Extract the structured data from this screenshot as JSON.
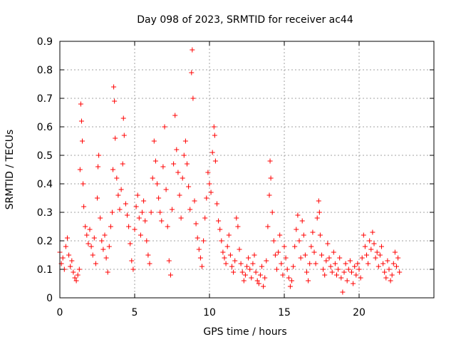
{
  "chart_data": {
    "type": "scatter",
    "title": "Day 098 of 2023, SRMTID for receiver ac44",
    "xlabel": "GPS time / hours",
    "ylabel": "SRMTID / TECUs",
    "xlim": [
      0,
      25
    ],
    "ylim": [
      0,
      0.9
    ],
    "xticks": [
      0,
      5,
      10,
      15,
      20
    ],
    "xtick_labels": [
      "0",
      "5",
      "10",
      "15",
      "20"
    ],
    "yticks": [
      0,
      0.1,
      0.2,
      0.3,
      0.4,
      0.5,
      0.6,
      0.7,
      0.8,
      0.9
    ],
    "ytick_labels": [
      "0",
      "0.1",
      "0.2",
      "0.3",
      "0.4",
      "0.5",
      "0.6",
      "0.7",
      "0.8",
      "0.9"
    ],
    "grid": true,
    "marker": "+",
    "color": "#ff0000",
    "series": [
      {
        "name": "SRMTID",
        "points": [
          [
            0.0,
            0.16
          ],
          [
            0.1,
            0.12
          ],
          [
            0.2,
            0.14
          ],
          [
            0.3,
            0.1
          ],
          [
            0.4,
            0.18
          ],
          [
            0.5,
            0.21
          ],
          [
            0.6,
            0.15
          ],
          [
            0.7,
            0.11
          ],
          [
            0.8,
            0.13
          ],
          [
            0.9,
            0.09
          ],
          [
            1.0,
            0.07
          ],
          [
            1.1,
            0.06
          ],
          [
            1.2,
            0.08
          ],
          [
            1.3,
            0.1
          ],
          [
            1.35,
            0.45
          ],
          [
            1.4,
            0.68
          ],
          [
            1.45,
            0.62
          ],
          [
            1.5,
            0.55
          ],
          [
            1.55,
            0.4
          ],
          [
            1.6,
            0.32
          ],
          [
            1.7,
            0.25
          ],
          [
            1.8,
            0.22
          ],
          [
            1.9,
            0.19
          ],
          [
            2.0,
            0.24
          ],
          [
            2.1,
            0.18
          ],
          [
            2.2,
            0.15
          ],
          [
            2.3,
            0.21
          ],
          [
            2.4,
            0.12
          ],
          [
            2.5,
            0.35
          ],
          [
            2.55,
            0.46
          ],
          [
            2.6,
            0.5
          ],
          [
            2.7,
            0.28
          ],
          [
            2.8,
            0.2
          ],
          [
            2.9,
            0.17
          ],
          [
            3.0,
            0.22
          ],
          [
            3.1,
            0.14
          ],
          [
            3.2,
            0.09
          ],
          [
            3.3,
            0.18
          ],
          [
            3.4,
            0.25
          ],
          [
            3.5,
            0.3
          ],
          [
            3.55,
            0.45
          ],
          [
            3.6,
            0.74
          ],
          [
            3.65,
            0.69
          ],
          [
            3.7,
            0.56
          ],
          [
            3.8,
            0.42
          ],
          [
            3.9,
            0.36
          ],
          [
            4.0,
            0.31
          ],
          [
            4.1,
            0.38
          ],
          [
            4.2,
            0.47
          ],
          [
            4.25,
            0.63
          ],
          [
            4.3,
            0.57
          ],
          [
            4.4,
            0.33
          ],
          [
            4.5,
            0.29
          ],
          [
            4.6,
            0.25
          ],
          [
            4.7,
            0.19
          ],
          [
            4.8,
            0.13
          ],
          [
            4.9,
            0.1
          ],
          [
            5.0,
            0.24
          ],
          [
            5.1,
            0.32
          ],
          [
            5.2,
            0.36
          ],
          [
            5.3,
            0.28
          ],
          [
            5.4,
            0.22
          ],
          [
            5.5,
            0.3
          ],
          [
            5.6,
            0.34
          ],
          [
            5.7,
            0.27
          ],
          [
            5.8,
            0.2
          ],
          [
            5.9,
            0.15
          ],
          [
            6.0,
            0.12
          ],
          [
            6.1,
            0.3
          ],
          [
            6.2,
            0.42
          ],
          [
            6.3,
            0.55
          ],
          [
            6.4,
            0.48
          ],
          [
            6.5,
            0.4
          ],
          [
            6.6,
            0.35
          ],
          [
            6.7,
            0.3
          ],
          [
            6.8,
            0.27
          ],
          [
            6.9,
            0.46
          ],
          [
            7.0,
            0.6
          ],
          [
            7.1,
            0.38
          ],
          [
            7.2,
            0.25
          ],
          [
            7.3,
            0.13
          ],
          [
            7.4,
            0.08
          ],
          [
            7.5,
            0.31
          ],
          [
            7.6,
            0.47
          ],
          [
            7.7,
            0.64
          ],
          [
            7.8,
            0.52
          ],
          [
            7.9,
            0.44
          ],
          [
            8.0,
            0.36
          ],
          [
            8.1,
            0.28
          ],
          [
            8.2,
            0.42
          ],
          [
            8.3,
            0.5
          ],
          [
            8.4,
            0.55
          ],
          [
            8.5,
            0.47
          ],
          [
            8.6,
            0.39
          ],
          [
            8.7,
            0.31
          ],
          [
            8.8,
            0.79
          ],
          [
            8.85,
            0.87
          ],
          [
            8.9,
            0.7
          ],
          [
            9.0,
            0.34
          ],
          [
            9.1,
            0.26
          ],
          [
            9.2,
            0.21
          ],
          [
            9.3,
            0.17
          ],
          [
            9.4,
            0.14
          ],
          [
            9.5,
            0.11
          ],
          [
            9.6,
            0.2
          ],
          [
            9.7,
            0.28
          ],
          [
            9.8,
            0.35
          ],
          [
            9.9,
            0.44
          ],
          [
            10.0,
            0.4
          ],
          [
            10.1,
            0.37
          ],
          [
            10.2,
            0.51
          ],
          [
            10.3,
            0.6
          ],
          [
            10.35,
            0.57
          ],
          [
            10.4,
            0.48
          ],
          [
            10.5,
            0.33
          ],
          [
            10.6,
            0.27
          ],
          [
            10.7,
            0.24
          ],
          [
            10.8,
            0.2
          ],
          [
            10.9,
            0.16
          ],
          [
            11.0,
            0.14
          ],
          [
            11.1,
            0.12
          ],
          [
            11.2,
            0.18
          ],
          [
            11.3,
            0.22
          ],
          [
            11.4,
            0.15
          ],
          [
            11.5,
            0.11
          ],
          [
            11.6,
            0.09
          ],
          [
            11.7,
            0.13
          ],
          [
            11.8,
            0.28
          ],
          [
            11.9,
            0.25
          ],
          [
            12.0,
            0.17
          ],
          [
            12.1,
            0.12
          ],
          [
            12.2,
            0.09
          ],
          [
            12.3,
            0.06
          ],
          [
            12.4,
            0.08
          ],
          [
            12.5,
            0.11
          ],
          [
            12.6,
            0.14
          ],
          [
            12.7,
            0.1
          ],
          [
            12.8,
            0.07
          ],
          [
            12.9,
            0.12
          ],
          [
            13.0,
            0.15
          ],
          [
            13.1,
            0.09
          ],
          [
            13.2,
            0.06
          ],
          [
            13.3,
            0.05
          ],
          [
            13.4,
            0.08
          ],
          [
            13.5,
            0.11
          ],
          [
            13.6,
            0.04
          ],
          [
            13.7,
            0.07
          ],
          [
            13.8,
            0.13
          ],
          [
            13.9,
            0.25
          ],
          [
            14.0,
            0.36
          ],
          [
            14.05,
            0.48
          ],
          [
            14.1,
            0.42
          ],
          [
            14.2,
            0.3
          ],
          [
            14.3,
            0.2
          ],
          [
            14.4,
            0.15
          ],
          [
            14.5,
            0.1
          ],
          [
            14.6,
            0.16
          ],
          [
            14.7,
            0.22
          ],
          [
            14.8,
            0.12
          ],
          [
            14.9,
            0.08
          ],
          [
            15.0,
            0.18
          ],
          [
            15.1,
            0.14
          ],
          [
            15.2,
            0.1
          ],
          [
            15.3,
            0.07
          ],
          [
            15.4,
            0.04
          ],
          [
            15.5,
            0.06
          ],
          [
            15.6,
            0.11
          ],
          [
            15.7,
            0.18
          ],
          [
            15.8,
            0.24
          ],
          [
            15.9,
            0.29
          ],
          [
            16.0,
            0.2
          ],
          [
            16.1,
            0.14
          ],
          [
            16.2,
            0.27
          ],
          [
            16.3,
            0.22
          ],
          [
            16.4,
            0.15
          ],
          [
            16.5,
            0.09
          ],
          [
            16.6,
            0.06
          ],
          [
            16.7,
            0.12
          ],
          [
            16.8,
            0.18
          ],
          [
            16.9,
            0.23
          ],
          [
            17.0,
            0.16
          ],
          [
            17.1,
            0.12
          ],
          [
            17.2,
            0.28
          ],
          [
            17.3,
            0.34
          ],
          [
            17.35,
            0.3
          ],
          [
            17.4,
            0.22
          ],
          [
            17.5,
            0.15
          ],
          [
            17.6,
            0.1
          ],
          [
            17.7,
            0.08
          ],
          [
            17.8,
            0.13
          ],
          [
            17.9,
            0.19
          ],
          [
            18.0,
            0.14
          ],
          [
            18.1,
            0.11
          ],
          [
            18.2,
            0.09
          ],
          [
            18.3,
            0.16
          ],
          [
            18.4,
            0.12
          ],
          [
            18.5,
            0.08
          ],
          [
            18.6,
            0.1
          ],
          [
            18.7,
            0.14
          ],
          [
            18.8,
            0.07
          ],
          [
            18.9,
            0.02
          ],
          [
            19.0,
            0.09
          ],
          [
            19.1,
            0.12
          ],
          [
            19.2,
            0.06
          ],
          [
            19.3,
            0.1
          ],
          [
            19.4,
            0.13
          ],
          [
            19.5,
            0.09
          ],
          [
            19.6,
            0.05
          ],
          [
            19.7,
            0.11
          ],
          [
            19.8,
            0.08
          ],
          [
            19.9,
            0.12
          ],
          [
            20.0,
            0.1
          ],
          [
            20.1,
            0.07
          ],
          [
            20.2,
            0.14
          ],
          [
            20.3,
            0.22
          ],
          [
            20.4,
            0.18
          ],
          [
            20.5,
            0.15
          ],
          [
            20.6,
            0.12
          ],
          [
            20.7,
            0.2
          ],
          [
            20.8,
            0.17
          ],
          [
            20.9,
            0.23
          ],
          [
            21.0,
            0.19
          ],
          [
            21.1,
            0.14
          ],
          [
            21.2,
            0.16
          ],
          [
            21.3,
            0.11
          ],
          [
            21.4,
            0.15
          ],
          [
            21.5,
            0.18
          ],
          [
            21.6,
            0.12
          ],
          [
            21.7,
            0.09
          ],
          [
            21.8,
            0.07
          ],
          [
            21.9,
            0.13
          ],
          [
            22.0,
            0.1
          ],
          [
            22.1,
            0.06
          ],
          [
            22.2,
            0.08
          ],
          [
            22.3,
            0.12
          ],
          [
            22.4,
            0.16
          ],
          [
            22.5,
            0.11
          ],
          [
            22.6,
            0.14
          ],
          [
            22.7,
            0.09
          ]
        ]
      }
    ]
  }
}
